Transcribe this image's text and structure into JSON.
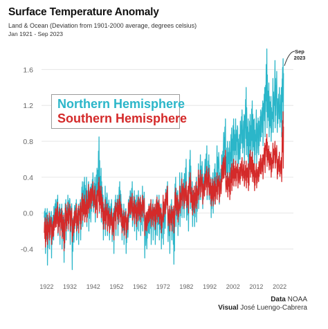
{
  "header": {
    "title": "Surface Temperature Anomaly",
    "subtitle": "Land & Ocean (Deviation from 1901-2000 average, degrees celsius)",
    "period": "Jan 1921 - Sep 2023"
  },
  "legend": {
    "northern": "Northern Hemisphere",
    "southern": "Southern Hemisphere"
  },
  "annotation": {
    "line1": "Sep",
    "line2": "2023"
  },
  "credits": {
    "data_label": "Data",
    "data_value": "NOAA",
    "visual_label": "Visual",
    "visual_value": "José Luengo-Cabrera"
  },
  "colors": {
    "northern": "#2bb6c9",
    "southern": "#d42a2a",
    "grid": "#e6e6e6",
    "axis_text": "#666666"
  },
  "chart_data": {
    "type": "line",
    "title": "Surface Temperature Anomaly",
    "xlabel": "",
    "ylabel": "",
    "xlim": [
      1921,
      2023.75
    ],
    "ylim": [
      -0.62,
      1.85
    ],
    "x_ticks": [
      "1922",
      "1932",
      "1942",
      "1952",
      "1962",
      "1972",
      "1982",
      "1992",
      "2002",
      "2012",
      "2022"
    ],
    "y_ticks": [
      "-0.4",
      "0.0",
      "0.4",
      "0.8",
      "1.2",
      "1.6"
    ],
    "grid": true,
    "x_key": "year (annual midpoints; highs/lows show monthly extremes)",
    "series": [
      {
        "name": "Northern Hemisphere",
        "x": [
          1921,
          1922,
          1923,
          1924,
          1925,
          1926,
          1927,
          1928,
          1929,
          1930,
          1931,
          1932,
          1933,
          1934,
          1935,
          1936,
          1937,
          1938,
          1939,
          1940,
          1941,
          1942,
          1943,
          1944,
          1945,
          1946,
          1947,
          1948,
          1949,
          1950,
          1951,
          1952,
          1953,
          1954,
          1955,
          1956,
          1957,
          1958,
          1959,
          1960,
          1961,
          1962,
          1963,
          1964,
          1965,
          1966,
          1967,
          1968,
          1969,
          1970,
          1971,
          1972,
          1973,
          1974,
          1975,
          1976,
          1977,
          1978,
          1979,
          1980,
          1981,
          1982,
          1983,
          1984,
          1985,
          1986,
          1987,
          1988,
          1989,
          1990,
          1991,
          1992,
          1993,
          1994,
          1995,
          1996,
          1997,
          1998,
          1999,
          2000,
          2001,
          2002,
          2003,
          2004,
          2005,
          2006,
          2007,
          2008,
          2009,
          2010,
          2011,
          2012,
          2013,
          2014,
          2015,
          2016,
          2017,
          2018,
          2019,
          2020,
          2021,
          2022,
          2023
        ],
        "mean": [
          -0.05,
          -0.1,
          -0.08,
          -0.12,
          0.0,
          0.05,
          -0.02,
          -0.05,
          -0.15,
          0.02,
          0.08,
          0.0,
          -0.12,
          0.02,
          -0.05,
          0.0,
          0.15,
          0.22,
          0.1,
          0.15,
          0.2,
          0.18,
          0.25,
          0.32,
          0.2,
          0.0,
          0.05,
          0.02,
          0.0,
          -0.12,
          0.02,
          0.05,
          0.15,
          -0.05,
          -0.08,
          -0.15,
          0.05,
          0.1,
          0.05,
          0.0,
          0.08,
          0.05,
          0.08,
          -0.15,
          -0.1,
          -0.05,
          -0.02,
          -0.08,
          0.05,
          0.0,
          -0.1,
          -0.05,
          0.18,
          -0.12,
          -0.02,
          -0.2,
          0.15,
          0.05,
          0.15,
          0.2,
          0.28,
          0.1,
          0.35,
          0.15,
          0.12,
          0.2,
          0.3,
          0.4,
          0.3,
          0.45,
          0.42,
          0.2,
          0.25,
          0.35,
          0.5,
          0.35,
          0.55,
          0.75,
          0.55,
          0.55,
          0.7,
          0.8,
          0.8,
          0.7,
          0.9,
          0.85,
          0.95,
          0.75,
          0.85,
          0.95,
          0.8,
          0.85,
          0.9,
          1.0,
          1.15,
          1.25,
          1.15,
          1.05,
          1.2,
          1.3,
          1.15,
          1.12,
          1.4
        ],
        "high": [
          0.05,
          0.05,
          0.02,
          0.02,
          0.15,
          0.2,
          0.1,
          0.1,
          0.0,
          0.15,
          0.2,
          0.15,
          0.0,
          0.15,
          0.1,
          0.15,
          0.35,
          0.4,
          0.4,
          0.35,
          0.45,
          0.4,
          0.5,
          0.85,
          0.5,
          0.2,
          0.3,
          0.2,
          0.15,
          0.05,
          0.2,
          0.2,
          0.35,
          0.1,
          0.1,
          0.05,
          0.25,
          0.35,
          0.25,
          0.2,
          0.25,
          0.2,
          0.3,
          0.05,
          0.1,
          0.15,
          0.15,
          0.1,
          0.2,
          0.2,
          0.1,
          0.15,
          0.35,
          0.05,
          0.15,
          0.0,
          0.4,
          0.25,
          0.45,
          0.45,
          0.6,
          0.3,
          0.7,
          0.35,
          0.3,
          0.4,
          0.55,
          0.65,
          0.5,
          0.75,
          0.65,
          0.4,
          0.45,
          0.55,
          0.75,
          0.55,
          0.75,
          1.05,
          0.8,
          0.8,
          0.95,
          1.05,
          1.05,
          0.95,
          1.15,
          1.1,
          1.4,
          1.05,
          1.1,
          1.25,
          1.05,
          1.15,
          1.15,
          1.25,
          1.4,
          1.83,
          1.45,
          1.3,
          1.5,
          1.7,
          1.4,
          1.4,
          1.72
        ],
        "low": [
          -0.45,
          -0.58,
          -0.4,
          -0.5,
          -0.3,
          -0.25,
          -0.35,
          -0.4,
          -0.55,
          -0.3,
          -0.2,
          -0.35,
          -0.63,
          -0.3,
          -0.35,
          -0.3,
          -0.15,
          -0.05,
          -0.15,
          -0.2,
          -0.1,
          -0.1,
          0.0,
          0.0,
          -0.1,
          -0.3,
          -0.25,
          -0.25,
          -0.3,
          -0.45,
          -0.25,
          -0.25,
          -0.1,
          -0.3,
          -0.35,
          -0.45,
          -0.2,
          -0.15,
          -0.2,
          -0.3,
          -0.2,
          -0.25,
          -0.2,
          -0.5,
          -0.4,
          -0.35,
          -0.3,
          -0.35,
          -0.25,
          -0.3,
          -0.4,
          -0.35,
          -0.05,
          -0.45,
          -0.3,
          -0.57,
          -0.15,
          -0.25,
          -0.15,
          -0.05,
          -0.05,
          -0.2,
          0.05,
          -0.15,
          -0.15,
          -0.1,
          0.05,
          0.15,
          0.05,
          0.15,
          0.15,
          -0.05,
          0.0,
          0.1,
          0.25,
          0.1,
          0.3,
          0.45,
          0.3,
          0.3,
          0.4,
          0.55,
          0.55,
          0.45,
          0.6,
          0.55,
          0.65,
          0.45,
          0.6,
          0.6,
          0.55,
          0.55,
          0.65,
          0.75,
          0.85,
          0.95,
          0.85,
          0.8,
          0.9,
          0.95,
          0.9,
          0.85,
          1.0
        ]
      },
      {
        "name": "Southern Hemisphere",
        "x": [
          1921,
          1922,
          1923,
          1924,
          1925,
          1926,
          1927,
          1928,
          1929,
          1930,
          1931,
          1932,
          1933,
          1934,
          1935,
          1936,
          1937,
          1938,
          1939,
          1940,
          1941,
          1942,
          1943,
          1944,
          1945,
          1946,
          1947,
          1948,
          1949,
          1950,
          1951,
          1952,
          1953,
          1954,
          1955,
          1956,
          1957,
          1958,
          1959,
          1960,
          1961,
          1962,
          1963,
          1964,
          1965,
          1966,
          1967,
          1968,
          1969,
          1970,
          1971,
          1972,
          1973,
          1974,
          1975,
          1976,
          1977,
          1978,
          1979,
          1980,
          1981,
          1982,
          1983,
          1984,
          1985,
          1986,
          1987,
          1988,
          1989,
          1990,
          1991,
          1992,
          1993,
          1994,
          1995,
          1996,
          1997,
          1998,
          1999,
          2000,
          2001,
          2002,
          2003,
          2004,
          2005,
          2006,
          2007,
          2008,
          2009,
          2010,
          2011,
          2012,
          2013,
          2014,
          2015,
          2016,
          2017,
          2018,
          2019,
          2020,
          2021,
          2022,
          2023
        ],
        "mean": [
          -0.22,
          -0.18,
          -0.15,
          -0.2,
          -0.1,
          -0.05,
          -0.08,
          -0.1,
          -0.2,
          -0.05,
          -0.02,
          -0.05,
          -0.15,
          -0.05,
          -0.08,
          -0.02,
          0.08,
          0.05,
          0.05,
          0.15,
          0.2,
          0.15,
          0.1,
          0.2,
          0.12,
          -0.02,
          -0.02,
          -0.05,
          -0.08,
          -0.15,
          -0.02,
          0.02,
          0.05,
          -0.08,
          -0.1,
          -0.12,
          0.05,
          0.08,
          0.02,
          0.0,
          0.05,
          0.05,
          0.08,
          -0.1,
          -0.05,
          0.0,
          -0.02,
          -0.03,
          0.05,
          0.02,
          -0.08,
          0.05,
          0.15,
          -0.05,
          -0.05,
          -0.05,
          0.12,
          0.05,
          0.15,
          0.22,
          0.2,
          0.15,
          0.28,
          0.12,
          0.15,
          0.2,
          0.3,
          0.32,
          0.25,
          0.35,
          0.35,
          0.22,
          0.22,
          0.25,
          0.3,
          0.28,
          0.45,
          0.5,
          0.32,
          0.3,
          0.4,
          0.45,
          0.45,
          0.42,
          0.48,
          0.45,
          0.42,
          0.4,
          0.55,
          0.5,
          0.4,
          0.42,
          0.5,
          0.52,
          0.6,
          0.7,
          0.62,
          0.55,
          0.65,
          0.65,
          0.52,
          0.5,
          0.8
        ],
        "high": [
          -0.05,
          -0.02,
          0.0,
          -0.05,
          0.05,
          0.12,
          0.05,
          0.05,
          -0.02,
          0.1,
          0.12,
          0.1,
          0.0,
          0.1,
          0.08,
          0.12,
          0.22,
          0.2,
          0.25,
          0.32,
          0.35,
          0.3,
          0.25,
          0.4,
          0.3,
          0.12,
          0.15,
          0.1,
          0.05,
          0.0,
          0.12,
          0.15,
          0.2,
          0.05,
          0.03,
          0.02,
          0.18,
          0.22,
          0.18,
          0.12,
          0.18,
          0.18,
          0.2,
          0.05,
          0.08,
          0.15,
          0.1,
          0.1,
          0.18,
          0.15,
          0.05,
          0.2,
          0.3,
          0.08,
          0.08,
          0.08,
          0.28,
          0.2,
          0.3,
          0.38,
          0.35,
          0.3,
          0.45,
          0.28,
          0.3,
          0.35,
          0.48,
          0.48,
          0.4,
          0.52,
          0.5,
          0.38,
          0.38,
          0.4,
          0.45,
          0.42,
          0.62,
          0.7,
          0.45,
          0.45,
          0.55,
          0.6,
          0.58,
          0.55,
          0.62,
          0.58,
          0.58,
          0.55,
          0.7,
          0.68,
          0.55,
          0.55,
          0.65,
          0.65,
          0.78,
          0.88,
          0.75,
          0.68,
          0.78,
          0.8,
          0.68,
          0.62,
          1.13
        ],
        "low": [
          -0.38,
          -0.35,
          -0.3,
          -0.35,
          -0.25,
          -0.22,
          -0.25,
          -0.28,
          -0.42,
          -0.2,
          -0.18,
          -0.2,
          -0.32,
          -0.2,
          -0.22,
          -0.18,
          -0.08,
          -0.1,
          -0.1,
          0.0,
          0.05,
          0.0,
          -0.05,
          0.02,
          -0.05,
          -0.18,
          -0.18,
          -0.2,
          -0.22,
          -0.3,
          -0.18,
          -0.12,
          -0.1,
          -0.22,
          -0.25,
          -0.28,
          -0.08,
          -0.08,
          -0.12,
          -0.15,
          -0.08,
          -0.1,
          -0.05,
          -0.25,
          -0.2,
          -0.15,
          -0.15,
          -0.18,
          -0.1,
          -0.12,
          -0.22,
          -0.1,
          0.0,
          -0.2,
          -0.2,
          -0.22,
          -0.02,
          -0.1,
          0.0,
          0.08,
          0.05,
          0.0,
          0.12,
          -0.02,
          0.0,
          0.05,
          0.15,
          0.18,
          0.1,
          0.2,
          0.2,
          0.08,
          0.08,
          0.1,
          0.15,
          0.12,
          0.28,
          0.32,
          0.18,
          0.15,
          0.25,
          0.3,
          0.3,
          0.28,
          0.32,
          0.3,
          0.28,
          0.25,
          0.4,
          0.35,
          0.25,
          0.28,
          0.35,
          0.38,
          0.45,
          0.52,
          0.48,
          0.4,
          0.5,
          0.5,
          0.38,
          0.35,
          0.5
        ]
      }
    ]
  }
}
